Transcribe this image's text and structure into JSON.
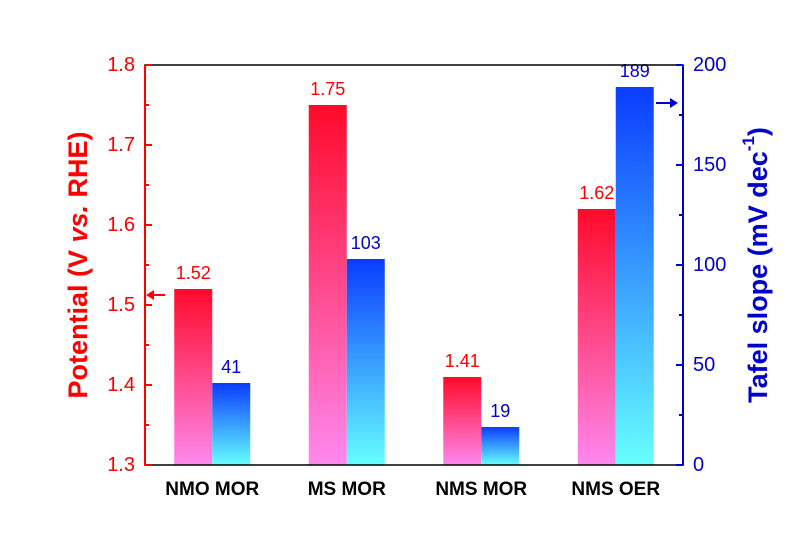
{
  "colors": {
    "left_axis": "#ff0000",
    "right_axis": "#0000cc",
    "potential_top": "#ff0a2a",
    "potential_bottom": "#ff88ee",
    "tafel_top": "#0a3cff",
    "tafel_bottom": "#66ffff"
  },
  "chart_data": {
    "type": "bar",
    "categories": [
      "NMO MOR",
      "MS MOR",
      "NMS MOR",
      "NMS OER"
    ],
    "series": [
      {
        "axis": "left",
        "values": [
          1.52,
          1.75,
          1.41,
          1.62
        ],
        "labels": [
          "1.52",
          "1.75",
          "1.41",
          "1.62"
        ]
      },
      {
        "axis": "right",
        "values": [
          41,
          103,
          19,
          189
        ],
        "labels": [
          "41",
          "103",
          "19",
          "189"
        ]
      }
    ],
    "ylabel_left": {
      "pre": "Potential (V ",
      "italic": "vs.",
      "post": " RHE)"
    },
    "ylabel_right": {
      "main": "Tafel slope (mV dec",
      "sup": "-1",
      "close": ")"
    },
    "ylim_left": [
      1.3,
      1.8
    ],
    "ylim_right": [
      0,
      200
    ],
    "left_ticks": [
      "1.3",
      "1.4",
      "1.5",
      "1.6",
      "1.7",
      "1.8"
    ],
    "right_ticks": [
      "0",
      "50",
      "100",
      "150",
      "200"
    ],
    "grid": false,
    "legend": "none"
  }
}
